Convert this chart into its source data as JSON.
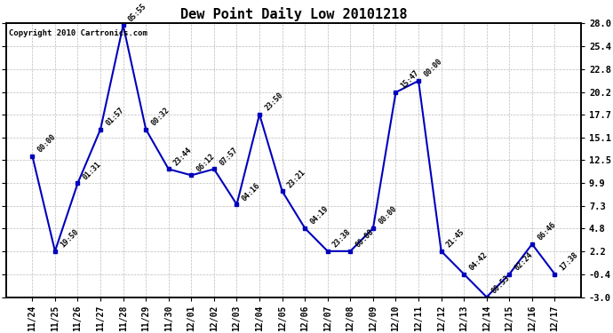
{
  "title": "Dew Point Daily Low 20101218",
  "copyright": "Copyright 2010 Cartronics.com",
  "x_labels": [
    "11/24",
    "11/25",
    "11/26",
    "11/27",
    "11/28",
    "11/29",
    "11/30",
    "12/01",
    "12/02",
    "12/03",
    "12/04",
    "12/05",
    "12/06",
    "12/07",
    "12/08",
    "12/09",
    "12/10",
    "12/11",
    "12/12",
    "12/13",
    "12/14",
    "12/15",
    "12/16",
    "12/17"
  ],
  "y_values": [
    13.0,
    2.2,
    9.9,
    16.0,
    27.8,
    16.0,
    11.5,
    10.8,
    11.5,
    7.5,
    17.7,
    9.0,
    4.8,
    2.2,
    2.2,
    4.8,
    20.2,
    21.5,
    2.2,
    -0.4,
    -3.0,
    -0.4,
    3.0,
    -0.4
  ],
  "point_labels": [
    "00:00",
    "19:50",
    "01:31",
    "01:57",
    "05:55",
    "00:32",
    "23:44",
    "06:12",
    "07:57",
    "04:16",
    "23:50",
    "23:21",
    "04:19",
    "23:38",
    "00:08",
    "00:00",
    "15:47",
    "00:00",
    "21:45",
    "04:42",
    "00:53",
    "02:24",
    "06:46",
    "17:38"
  ],
  "line_color": "#0000bb",
  "marker_color": "#0000bb",
  "background_color": "#ffffff",
  "grid_color": "#bbbbbb",
  "ymin": -3.0,
  "ymax": 28.0,
  "yticks": [
    28.0,
    25.4,
    22.8,
    20.2,
    17.7,
    15.1,
    12.5,
    9.9,
    7.3,
    4.8,
    2.2,
    -0.4,
    -3.0
  ]
}
